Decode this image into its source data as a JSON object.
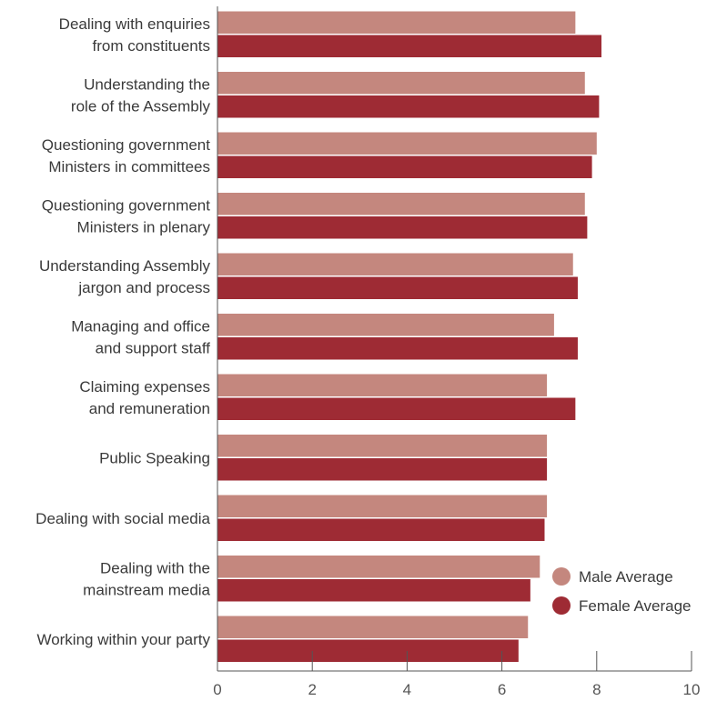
{
  "chart_data": {
    "type": "bar",
    "orientation": "horizontal",
    "categories": [
      [
        "Dealing with enquiries",
        "from constituents"
      ],
      [
        "Understanding the",
        "role of the Assembly"
      ],
      [
        "Questioning government",
        "Ministers in committees"
      ],
      [
        "Questioning government",
        "Ministers in plenary"
      ],
      [
        "Understanding Assembly",
        "jargon and process"
      ],
      [
        "Managing and office",
        "and support staff"
      ],
      [
        "Claiming expenses",
        "and remuneration"
      ],
      [
        "Public Speaking"
      ],
      [
        "Dealing with social media"
      ],
      [
        "Dealing with the",
        "mainstream media"
      ],
      [
        "Working within your party"
      ]
    ],
    "series": [
      {
        "name": "Male Average",
        "color": "#c4877e",
        "values": [
          7.55,
          7.75,
          8.0,
          7.75,
          7.5,
          7.1,
          6.95,
          6.95,
          6.95,
          6.8,
          6.55
        ]
      },
      {
        "name": "Female Average",
        "color": "#9e2b34",
        "values": [
          8.1,
          8.05,
          7.9,
          7.8,
          7.6,
          7.6,
          7.55,
          6.95,
          6.9,
          6.6,
          6.35
        ]
      }
    ],
    "xlim": [
      0,
      10
    ],
    "xticks": [
      "0",
      "2",
      "4",
      "6",
      "8",
      "10"
    ],
    "xlabel": "",
    "ylabel": "",
    "title": "",
    "legend_position": "bottom-right",
    "grid": false
  }
}
